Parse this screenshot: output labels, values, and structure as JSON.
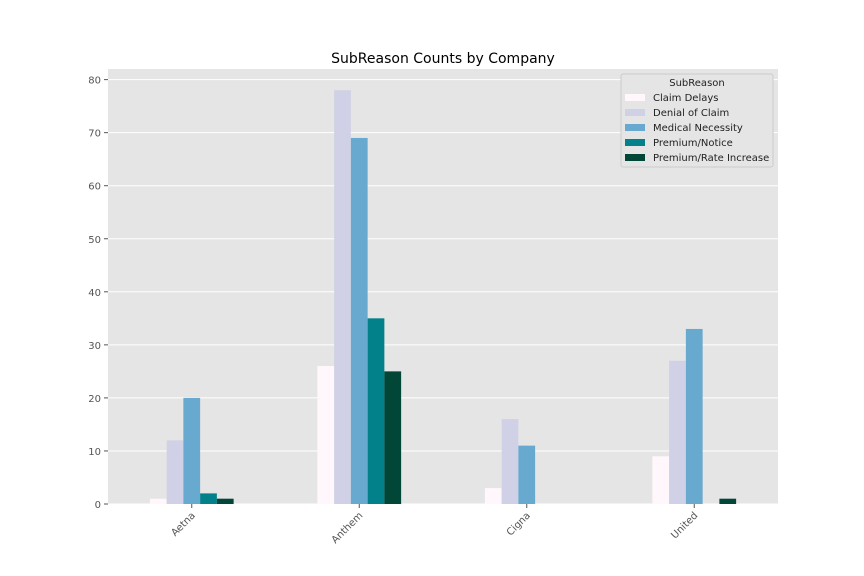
{
  "chart_data": {
    "type": "bar",
    "title": "SubReason Counts by Company",
    "xlabel": "",
    "ylabel": "",
    "categories": [
      "Aetna",
      "Anthem",
      "Cigna",
      "United"
    ],
    "ylim": [
      0,
      82
    ],
    "yticks": [
      0,
      10,
      20,
      30,
      40,
      50,
      60,
      70,
      80
    ],
    "grid": true,
    "legend": {
      "title": "SubReason",
      "placement": "top-right"
    },
    "series": [
      {
        "name": "Claim Delays",
        "color": "#fff7fb",
        "values": [
          1,
          26,
          3,
          9
        ]
      },
      {
        "name": "Denial of Claim",
        "color": "#d0d1e6",
        "values": [
          12,
          78,
          16,
          27
        ]
      },
      {
        "name": "Medical Necessity",
        "color": "#67a9cf",
        "values": [
          20,
          69,
          11,
          33
        ]
      },
      {
        "name": "Premium/Notice",
        "color": "#02818a",
        "values": [
          2,
          35,
          0,
          0
        ]
      },
      {
        "name": "Premium/Rate Increase",
        "color": "#014636",
        "values": [
          1,
          25,
          0,
          1
        ]
      }
    ]
  }
}
